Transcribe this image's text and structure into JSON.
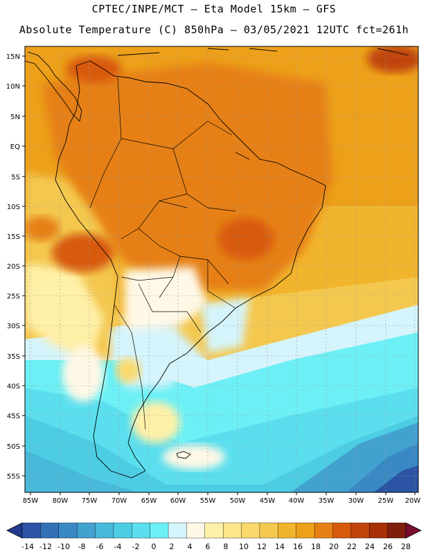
{
  "header": {
    "line1": "CPTEC/INPE/MCT –  Eta Model 15km – GFS",
    "line2": "Absolute Temperature (C) 850hPa – 03/05/2021 12UTC fct=261h"
  },
  "map": {
    "lat_labels": [
      "15N",
      "10N",
      "5N",
      "EQ",
      "5S",
      "10S",
      "15S",
      "20S",
      "25S",
      "30S",
      "35S",
      "40S",
      "45S",
      "50S",
      "55S"
    ],
    "lon_labels": [
      "85W",
      "80W",
      "75W",
      "70W",
      "65W",
      "60W",
      "55W",
      "50W",
      "45W",
      "40W",
      "35W",
      "30W",
      "25W",
      "20W"
    ]
  },
  "colorbar": {
    "labels": [
      "-14",
      "-12",
      "-10",
      "-8",
      "-6",
      "-4",
      "-2",
      "0",
      "2",
      "4",
      "6",
      "8",
      "10",
      "12",
      "14",
      "16",
      "18",
      "20",
      "22",
      "24",
      "26",
      "28"
    ],
    "colors": [
      "#233a8c",
      "#2b54a4",
      "#3370b6",
      "#3a88c4",
      "#42a2cf",
      "#48b9da",
      "#4ccde4",
      "#5bdfee",
      "#6cf0f5",
      "#d5f4fb",
      "#fff8e6",
      "#fff0a8",
      "#fde689",
      "#f9d96c",
      "#f4c84f",
      "#f1b42d",
      "#eda01a",
      "#e68016",
      "#d85a0e",
      "#c04409",
      "#a83008",
      "#7e1e0c",
      "#7a0c2e"
    ]
  },
  "regions": {
    "ocean_color": "#5bdfee",
    "land_color": "#eda01a"
  }
}
